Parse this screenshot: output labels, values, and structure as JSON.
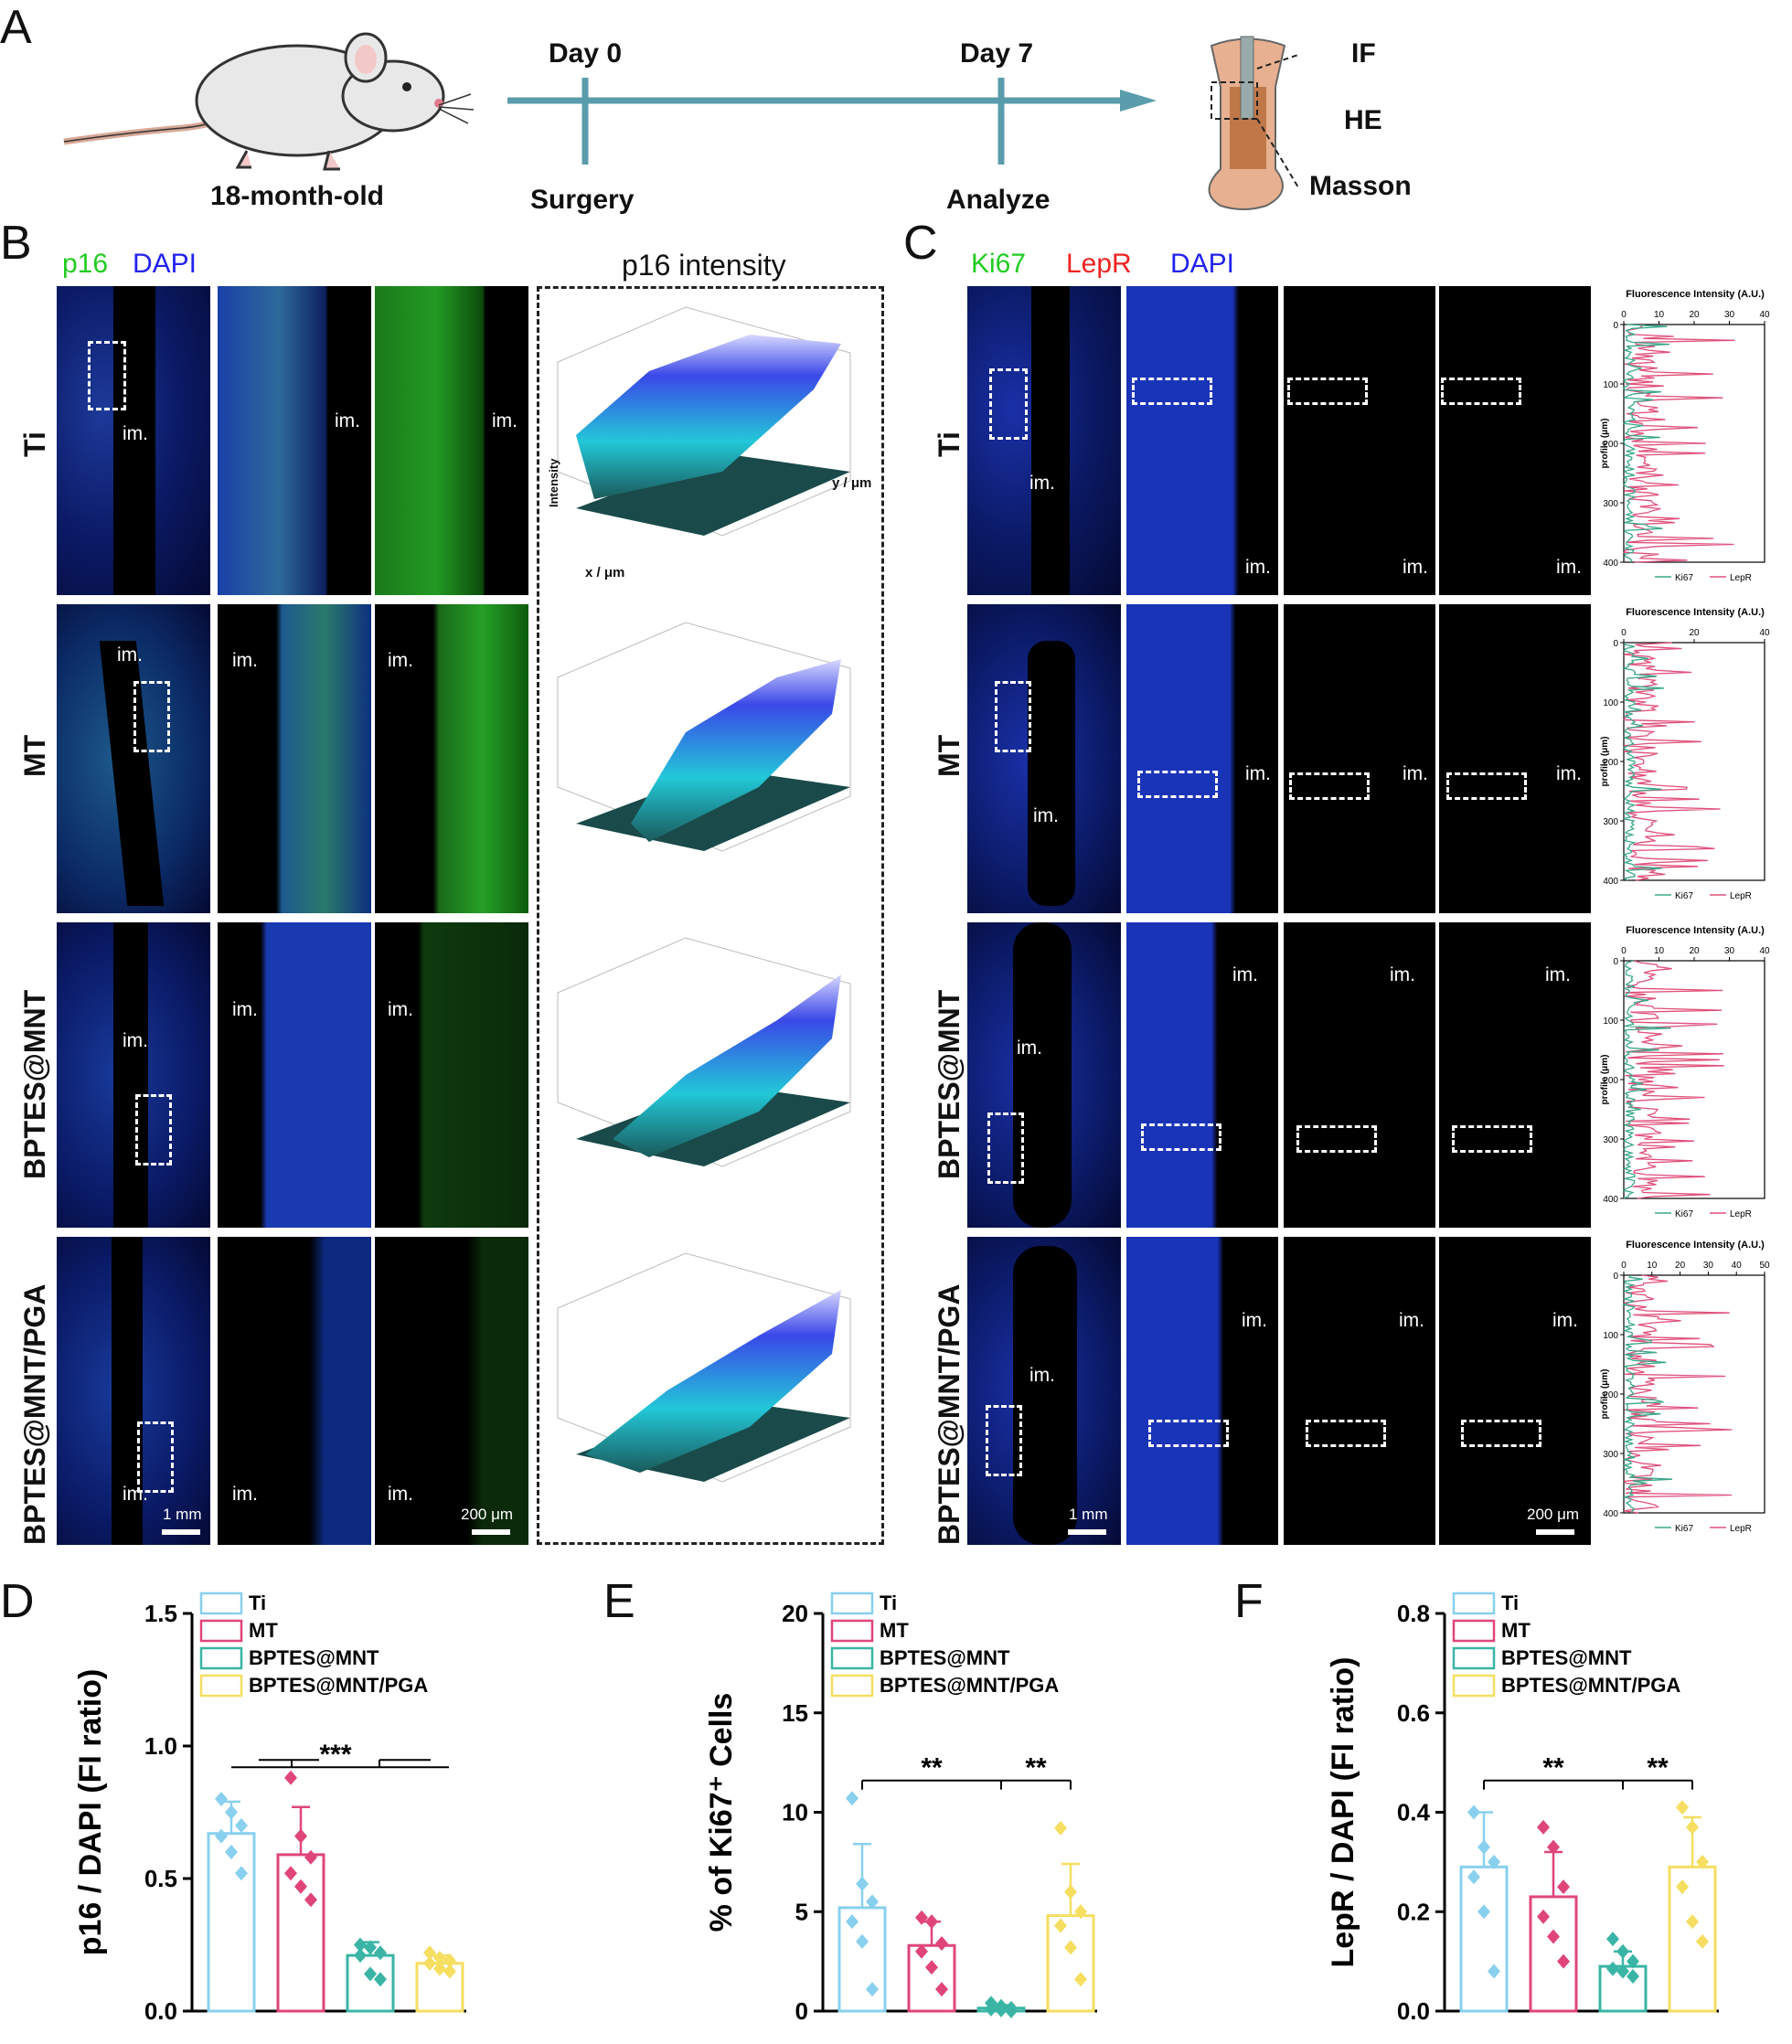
{
  "panel_letters": [
    "A",
    "B",
    "C",
    "D",
    "E",
    "F"
  ],
  "panelA": {
    "mouse_label": "18-month-old",
    "timeline": {
      "day0": "Day 0",
      "day7": "Day 7",
      "event0": "Surgery",
      "event7": "Analyze"
    },
    "analyses": [
      "IF",
      "HE",
      "Masson"
    ]
  },
  "panelB": {
    "header_p16": "p16",
    "header_dapi": "DAPI",
    "intensity_title": "p16  intensity",
    "rows": [
      "Ti",
      "MT",
      "BPTES@MNT",
      "BPTES@MNT/PGA"
    ],
    "im_label": "im.",
    "scale_1mm": "1 mm",
    "scale_200um": "200 μm",
    "plot_axis_x": "x / μm",
    "plot_axis_y": "y / μm",
    "plot_axis_z": "Intensity",
    "colors": {
      "p16": "#22cc22",
      "dapi": "#2222ee"
    }
  },
  "panelC": {
    "header_ki67": "Ki67",
    "header_lepr": "LepR",
    "header_dapi": "DAPI",
    "rows": [
      "Ti",
      "MT",
      "BPTES@MNT",
      "BPTES@MNT/PGA"
    ],
    "im_label": "im.",
    "scale_1mm": "1 mm",
    "scale_200um": "200 μm",
    "profile_title": "Fluorescence Intensity (A.U.)",
    "profile_ylabel": "profile (μm)",
    "profile_legend": [
      "Ki67",
      "LepR"
    ],
    "profile_xticks": [
      [
        "0",
        "10",
        "20",
        "30",
        "40"
      ],
      [
        "0",
        "20",
        "40"
      ],
      [
        "0",
        "10",
        "20",
        "30",
        "40"
      ],
      [
        "0",
        "10",
        "20",
        "30",
        "40",
        "50"
      ]
    ],
    "profile_yticks": [
      "0",
      "100",
      "200",
      "300",
      "400"
    ],
    "colors": {
      "ki67": "#22cc22",
      "lepr": "#ee2222",
      "dapi": "#2222ee",
      "ki67_line": "#3aa88a",
      "lepr_line": "#e0507a"
    }
  },
  "chart_data": [
    {
      "panel": "D",
      "type": "bar",
      "ylabel": "p16 / DAPI (FI ratio)",
      "ylim": [
        0,
        1.5
      ],
      "yticks": [
        "0.0",
        "0.5",
        "1.0",
        "1.5"
      ],
      "categories": [
        "Ti",
        "MT",
        "BPTES@MNT",
        "BPTES@MNT/PGA"
      ],
      "values": [
        0.67,
        0.59,
        0.21,
        0.18
      ],
      "errors": [
        0.12,
        0.18,
        0.05,
        0.03
      ],
      "points": [
        [
          0.8,
          0.75,
          0.7,
          0.66,
          0.6,
          0.52
        ],
        [
          0.88,
          0.66,
          0.58,
          0.52,
          0.47,
          0.42
        ],
        [
          0.25,
          0.24,
          0.22,
          0.21,
          0.14,
          0.12
        ],
        [
          0.22,
          0.2,
          0.19,
          0.18,
          0.16,
          0.15
        ]
      ],
      "significance": [
        {
          "label": "***"
        }
      ],
      "legend": [
        "Ti",
        "MT",
        "BPTES@MNT",
        "BPTES@MNT/PGA"
      ]
    },
    {
      "panel": "E",
      "type": "bar",
      "ylabel": "% of Ki67⁺ Cells",
      "ylim": [
        0,
        20
      ],
      "yticks": [
        "0",
        "5",
        "10",
        "15",
        "20"
      ],
      "categories": [
        "Ti",
        "MT",
        "BPTES@MNT",
        "BPTES@MNT/PGA"
      ],
      "values": [
        5.2,
        3.3,
        0.15,
        4.8
      ],
      "errors": [
        3.2,
        1.2,
        0.15,
        2.6
      ],
      "points": [
        [
          10.7,
          6.4,
          5.5,
          4.5,
          3.5,
          1.1
        ],
        [
          4.7,
          4.5,
          3.4,
          3.0,
          2.2,
          1.1
        ],
        [
          0.4,
          0.25,
          0.15,
          0.1,
          0.05,
          0.0
        ],
        [
          9.2,
          6.0,
          5.0,
          4.3,
          3.2,
          1.6
        ]
      ],
      "significance": [
        {
          "label": "**"
        },
        {
          "label": "**"
        }
      ],
      "legend": [
        "Ti",
        "MT",
        "BPTES@MNT",
        "BPTES@MNT/PGA"
      ]
    },
    {
      "panel": "F",
      "type": "bar",
      "ylabel": "LepR / DAPI (FI ratio)",
      "ylim": [
        0,
        0.8
      ],
      "yticks": [
        "0.0",
        "0.2",
        "0.4",
        "0.6",
        "0.8"
      ],
      "categories": [
        "Ti",
        "MT",
        "BPTES@MNT",
        "BPTES@MNT/PGA"
      ],
      "values": [
        0.29,
        0.23,
        0.09,
        0.29
      ],
      "errors": [
        0.11,
        0.09,
        0.03,
        0.1
      ],
      "points": [
        [
          0.4,
          0.33,
          0.3,
          0.27,
          0.2,
          0.08
        ],
        [
          0.37,
          0.33,
          0.25,
          0.19,
          0.15,
          0.1
        ],
        [
          0.145,
          0.12,
          0.1,
          0.085,
          0.08,
          0.07
        ],
        [
          0.41,
          0.37,
          0.3,
          0.25,
          0.18,
          0.14
        ]
      ],
      "significance": [
        {
          "label": "**"
        },
        {
          "label": "**"
        }
      ],
      "legend": [
        "Ti",
        "MT",
        "BPTES@MNT",
        "BPTES@MNT/PGA"
      ]
    }
  ],
  "group_colors": {
    "Ti": "#88d0ee",
    "MT": "#e0457a",
    "BPTES@MNT": "#3ab5a5",
    "BPTES@MNT/PGA": "#f5de60"
  }
}
